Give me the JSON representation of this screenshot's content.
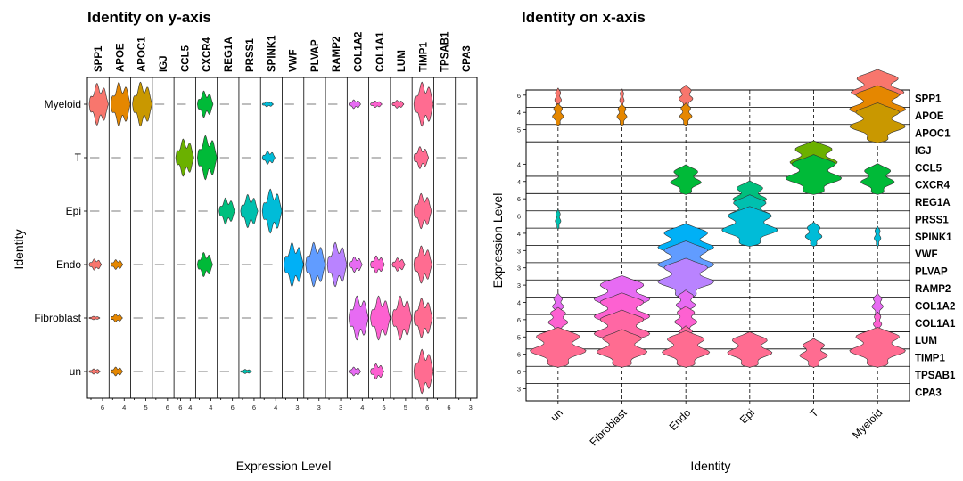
{
  "chart_data": [
    {
      "type": "violin",
      "title": "Identity on y-axis",
      "xlabel": "Expression Level",
      "ylabel": "Identity",
      "genes": [
        {
          "name": "SPP1",
          "ticks": [
            "6"
          ],
          "color": "#F8766D"
        },
        {
          "name": "APOE",
          "ticks": [
            "4"
          ],
          "color": "#E58700"
        },
        {
          "name": "APOC1",
          "ticks": [
            "5"
          ],
          "color": "#C99800"
        },
        {
          "name": "IGJ",
          "ticks": [
            "6"
          ],
          "color": "#A3A500"
        },
        {
          "name": "CCL5",
          "ticks": [
            "6",
            "4"
          ],
          "color": "#6BB100"
        },
        {
          "name": "CXCR4",
          "ticks": [
            "4"
          ],
          "color": "#00BA38"
        },
        {
          "name": "REG1A",
          "ticks": [
            "6"
          ],
          "color": "#00BF7D"
        },
        {
          "name": "PRSS1",
          "ticks": [
            "6"
          ],
          "color": "#00C0AF"
        },
        {
          "name": "SPINK1",
          "ticks": [
            "4"
          ],
          "color": "#00BCD8"
        },
        {
          "name": "VWF",
          "ticks": [
            "3"
          ],
          "color": "#00B0F6"
        },
        {
          "name": "PLVAP",
          "ticks": [
            "3"
          ],
          "color": "#619CFF"
        },
        {
          "name": "RAMP2",
          "ticks": [
            "3"
          ],
          "color": "#B983FF"
        },
        {
          "name": "COL1A2",
          "ticks": [
            "4"
          ],
          "color": "#E76BF3"
        },
        {
          "name": "COL1A1",
          "ticks": [
            "6"
          ],
          "color": "#FD61D1"
        },
        {
          "name": "LUM",
          "ticks": [
            "5"
          ],
          "color": "#FF67A4"
        },
        {
          "name": "TIMP1",
          "ticks": [
            "6"
          ],
          "color": "#FF6C91"
        },
        {
          "name": "TPSAB1",
          "ticks": [
            "6"
          ],
          "color": "#F8766D"
        },
        {
          "name": "CPA3",
          "ticks": [
            "3"
          ],
          "color": "#F8766D"
        }
      ],
      "identities": [
        "Myeloid",
        "T",
        "Epi",
        "Endo",
        "Fibroblast",
        "un"
      ]
    },
    {
      "type": "violin",
      "title": "Identity on x-axis",
      "xlabel": "Identity",
      "ylabel": "Expression Level",
      "identities": [
        "un",
        "Fibroblast",
        "Endo",
        "Epi",
        "T",
        "Myeloid"
      ],
      "genes": [
        {
          "name": "SPP1",
          "ticks": [
            "6"
          ]
        },
        {
          "name": "APOE",
          "ticks": [
            "4"
          ]
        },
        {
          "name": "APOC1",
          "ticks": [
            "5"
          ]
        },
        {
          "name": "IGJ",
          "ticks": []
        },
        {
          "name": "CCL5",
          "ticks": [
            "4"
          ]
        },
        {
          "name": "CXCR4",
          "ticks": [
            "4"
          ]
        },
        {
          "name": "REG1A",
          "ticks": [
            "6"
          ]
        },
        {
          "name": "PRSS1",
          "ticks": [
            "6"
          ]
        },
        {
          "name": "SPINK1",
          "ticks": [
            "4"
          ]
        },
        {
          "name": "VWF",
          "ticks": [
            "3"
          ]
        },
        {
          "name": "PLVAP",
          "ticks": [
            "3"
          ]
        },
        {
          "name": "RAMP2",
          "ticks": [
            "3"
          ]
        },
        {
          "name": "COL1A2",
          "ticks": [
            "4"
          ]
        },
        {
          "name": "COL1A1",
          "ticks": [
            "6"
          ]
        },
        {
          "name": "LUM",
          "ticks": [
            "5"
          ]
        },
        {
          "name": "TIMP1",
          "ticks": [
            "6"
          ]
        },
        {
          "name": "TPSAB1",
          "ticks": [
            "6"
          ]
        },
        {
          "name": "CPA3",
          "ticks": [
            "3"
          ]
        }
      ]
    }
  ],
  "violins": [
    {
      "gene": "SPP1",
      "identity": "Myeloid",
      "size": 0.95
    },
    {
      "gene": "SPP1",
      "identity": "Endo",
      "size": 0.25
    },
    {
      "gene": "SPP1",
      "identity": "Fibroblast",
      "size": 0.08
    },
    {
      "gene": "SPP1",
      "identity": "un",
      "size": 0.12
    },
    {
      "gene": "APOE",
      "identity": "Myeloid",
      "size": 1.0
    },
    {
      "gene": "APOE",
      "identity": "Endo",
      "size": 0.22
    },
    {
      "gene": "APOE",
      "identity": "Fibroblast",
      "size": 0.18
    },
    {
      "gene": "APOE",
      "identity": "un",
      "size": 0.2
    },
    {
      "gene": "APOC1",
      "identity": "Myeloid",
      "size": 1.0
    },
    {
      "gene": "CCL5",
      "identity": "T",
      "size": 0.85
    },
    {
      "gene": "CXCR4",
      "identity": "Myeloid",
      "size": 0.6
    },
    {
      "gene": "CXCR4",
      "identity": "T",
      "size": 1.0
    },
    {
      "gene": "CXCR4",
      "identity": "Endo",
      "size": 0.55
    },
    {
      "gene": "REG1A",
      "identity": "Epi",
      "size": 0.6
    },
    {
      "gene": "PRSS1",
      "identity": "Epi",
      "size": 0.75
    },
    {
      "gene": "PRSS1",
      "identity": "un",
      "size": 0.1
    },
    {
      "gene": "SPINK1",
      "identity": "Myeloid",
      "size": 0.12
    },
    {
      "gene": "SPINK1",
      "identity": "T",
      "size": 0.3
    },
    {
      "gene": "SPINK1",
      "identity": "Epi",
      "size": 1.0
    },
    {
      "gene": "VWF",
      "identity": "Endo",
      "size": 1.0
    },
    {
      "gene": "PLVAP",
      "identity": "Endo",
      "size": 1.0
    },
    {
      "gene": "RAMP2",
      "identity": "Endo",
      "size": 1.0
    },
    {
      "gene": "COL1A2",
      "identity": "Myeloid",
      "size": 0.2
    },
    {
      "gene": "COL1A2",
      "identity": "Endo",
      "size": 0.35
    },
    {
      "gene": "COL1A2",
      "identity": "Fibroblast",
      "size": 1.0
    },
    {
      "gene": "COL1A2",
      "identity": "un",
      "size": 0.2
    },
    {
      "gene": "COL1A1",
      "identity": "Myeloid",
      "size": 0.15
    },
    {
      "gene": "COL1A1",
      "identity": "Endo",
      "size": 0.4
    },
    {
      "gene": "COL1A1",
      "identity": "Fibroblast",
      "size": 1.0
    },
    {
      "gene": "COL1A1",
      "identity": "un",
      "size": 0.35
    },
    {
      "gene": "LUM",
      "identity": "Myeloid",
      "size": 0.18
    },
    {
      "gene": "LUM",
      "identity": "Endo",
      "size": 0.3
    },
    {
      "gene": "LUM",
      "identity": "Fibroblast",
      "size": 1.0
    },
    {
      "gene": "TIMP1",
      "identity": "Myeloid",
      "size": 1.0
    },
    {
      "gene": "TIMP1",
      "identity": "T",
      "size": 0.5
    },
    {
      "gene": "TIMP1",
      "identity": "Epi",
      "size": 0.8
    },
    {
      "gene": "TIMP1",
      "identity": "Endo",
      "size": 0.85
    },
    {
      "gene": "TIMP1",
      "identity": "Fibroblast",
      "size": 0.9
    },
    {
      "gene": "TIMP1",
      "identity": "un",
      "size": 1.0
    }
  ]
}
